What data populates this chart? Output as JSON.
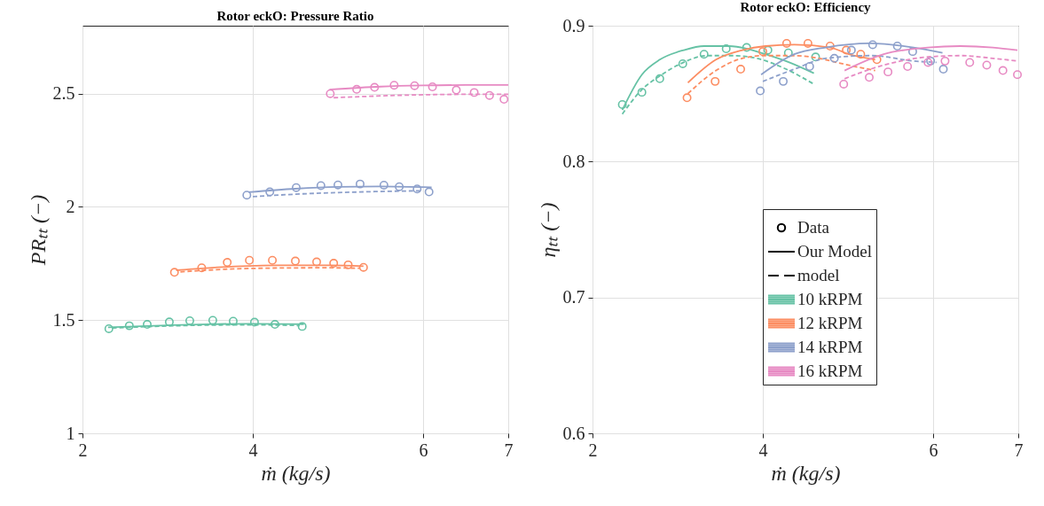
{
  "chart_data": [
    {
      "type": "line",
      "title": "Rotor eckO: Pressure Ratio",
      "xlabel": "ṁ (kg/s)",
      "ylabel": "PRₜₜ (−)",
      "xlim": [
        2,
        7
      ],
      "ylim": [
        1,
        2.8
      ],
      "xticks": [
        2,
        4,
        6,
        7
      ],
      "yticks": [
        1,
        1.5,
        2,
        2.5
      ],
      "grid": true,
      "series": [
        {
          "type": "scatter",
          "marker": "circle",
          "color": "#66c2a5",
          "x": [
            2.31,
            2.55,
            2.76,
            3.02,
            3.26,
            3.53,
            3.77,
            4.02,
            4.26,
            4.58
          ],
          "values": [
            1.462,
            1.475,
            1.481,
            1.492,
            1.497,
            1.499,
            1.495,
            1.491,
            1.481,
            1.472
          ]
        },
        {
          "type": "line",
          "line_style": "solid",
          "color": "#66c2a5",
          "x": [
            2.3,
            3.0,
            3.5,
            4.0,
            4.6
          ],
          "values": [
            1.468,
            1.477,
            1.482,
            1.484,
            1.482
          ]
        },
        {
          "type": "line",
          "line_style": "dashed",
          "color": "#66c2a5",
          "x": [
            2.35,
            3.0,
            3.5,
            4.0,
            4.55
          ],
          "values": [
            1.465,
            1.474,
            1.478,
            1.479,
            1.476
          ]
        },
        {
          "type": "scatter",
          "marker": "circle",
          "color": "#fc8d62",
          "x": [
            3.08,
            3.4,
            3.7,
            3.96,
            4.23,
            4.5,
            4.75,
            4.95,
            5.12,
            5.3
          ],
          "values": [
            1.711,
            1.731,
            1.755,
            1.764,
            1.764,
            1.761,
            1.757,
            1.751,
            1.744,
            1.733
          ]
        },
        {
          "type": "line",
          "line_style": "solid",
          "color": "#fc8d62",
          "x": [
            3.1,
            3.7,
            4.3,
            4.9,
            5.3
          ],
          "values": [
            1.72,
            1.735,
            1.742,
            1.742,
            1.738
          ]
        },
        {
          "type": "line",
          "line_style": "dashed",
          "color": "#fc8d62",
          "x": [
            3.15,
            3.7,
            4.3,
            4.9,
            5.25
          ],
          "values": [
            1.713,
            1.725,
            1.73,
            1.731,
            1.729
          ]
        },
        {
          "type": "scatter",
          "marker": "circle",
          "color": "#8da0cb",
          "x": [
            3.93,
            4.2,
            4.51,
            4.8,
            5.0,
            5.26,
            5.54,
            5.72,
            5.93,
            6.07
          ],
          "values": [
            2.052,
            2.066,
            2.085,
            2.094,
            2.097,
            2.101,
            2.096,
            2.089,
            2.079,
            2.066
          ]
        },
        {
          "type": "line",
          "line_style": "solid",
          "color": "#8da0cb",
          "x": [
            3.95,
            4.5,
            5.0,
            5.5,
            6.1
          ],
          "values": [
            2.065,
            2.08,
            2.088,
            2.09,
            2.086
          ]
        },
        {
          "type": "line",
          "line_style": "dashed",
          "color": "#8da0cb",
          "x": [
            4.0,
            4.5,
            5.0,
            5.5,
            6.0
          ],
          "values": [
            2.045,
            2.056,
            2.063,
            2.068,
            2.071
          ]
        },
        {
          "type": "scatter",
          "marker": "circle",
          "color": "#e78ac3",
          "x": [
            4.91,
            5.22,
            5.43,
            5.66,
            5.9,
            6.11,
            6.39,
            6.6,
            6.78,
            6.95
          ],
          "values": [
            2.5,
            2.519,
            2.528,
            2.537,
            2.535,
            2.53,
            2.516,
            2.505,
            2.492,
            2.475
          ]
        },
        {
          "type": "line",
          "line_style": "solid",
          "color": "#e78ac3",
          "x": [
            4.9,
            5.5,
            6.0,
            6.5,
            7.0
          ],
          "values": [
            2.518,
            2.531,
            2.536,
            2.538,
            2.538
          ]
        },
        {
          "type": "line",
          "line_style": "dashed",
          "color": "#e78ac3",
          "x": [
            4.95,
            5.5,
            6.0,
            6.5,
            7.0
          ],
          "values": [
            2.482,
            2.49,
            2.495,
            2.497,
            2.497
          ]
        }
      ]
    },
    {
      "type": "line",
      "title": "Rotor eckO: Efficiency",
      "xlabel": "ṁ (kg/s)",
      "ylabel": "ηₜₜ (−)",
      "xlim": [
        2,
        7
      ],
      "ylim": [
        0.6,
        0.9
      ],
      "xticks": [
        2,
        4,
        6,
        7
      ],
      "yticks": [
        0.6,
        0.7,
        0.8,
        0.9
      ],
      "grid": true,
      "legend": "center",
      "series": [
        {
          "name": "Data",
          "type": "scatter",
          "marker": "circle",
          "color": "#000000"
        },
        {
          "name": "Our Model",
          "type": "line",
          "line_style": "solid",
          "color": "#000000"
        },
        {
          "name": "model",
          "type": "line",
          "line_style": "dashed",
          "color": "#000000"
        },
        {
          "type": "scatter",
          "marker": "circle",
          "color": "#66c2a5",
          "x": [
            2.35,
            2.58,
            2.79,
            3.06,
            3.31,
            3.57,
            3.81,
            4.06,
            4.3,
            4.62
          ],
          "values": [
            0.842,
            0.851,
            0.861,
            0.872,
            0.879,
            0.883,
            0.884,
            0.882,
            0.88,
            0.877
          ]
        },
        {
          "name": "10 kRPM",
          "type": "line",
          "line_style": "solid",
          "color": "#66c2a5",
          "x": [
            2.35,
            2.58,
            2.79,
            3.07,
            3.31,
            3.6,
            3.82,
            4.03,
            4.31,
            4.6
          ],
          "values": [
            0.838,
            0.864,
            0.875,
            0.882,
            0.885,
            0.885,
            0.883,
            0.879,
            0.873,
            0.865
          ]
        },
        {
          "type": "line",
          "line_style": "dashed",
          "color": "#66c2a5",
          "x": [
            2.35,
            2.58,
            2.79,
            3.07,
            3.34,
            3.65,
            3.93,
            4.24,
            4.6
          ],
          "values": [
            0.835,
            0.853,
            0.863,
            0.873,
            0.878,
            0.878,
            0.876,
            0.869,
            0.857
          ]
        },
        {
          "type": "scatter",
          "marker": "circle",
          "color": "#fc8d62",
          "x": [
            3.11,
            3.44,
            3.74,
            4.0,
            4.28,
            4.53,
            4.79,
            4.98,
            5.15,
            5.34
          ],
          "values": [
            0.847,
            0.859,
            0.868,
            0.881,
            0.887,
            0.887,
            0.885,
            0.882,
            0.879,
            0.875
          ]
        },
        {
          "name": "12 kRPM",
          "type": "line",
          "line_style": "solid",
          "color": "#fc8d62",
          "x": [
            3.12,
            3.45,
            3.76,
            4.03,
            4.37,
            4.79,
            5.01,
            5.32
          ],
          "values": [
            0.858,
            0.875,
            0.882,
            0.885,
            0.886,
            0.884,
            0.879,
            0.875
          ]
        },
        {
          "type": "line",
          "line_style": "dashed",
          "color": "#fc8d62",
          "x": [
            3.12,
            3.45,
            3.76,
            4.03,
            4.37,
            5.08,
            5.32
          ],
          "values": [
            0.85,
            0.867,
            0.876,
            0.878,
            0.878,
            0.87,
            0.867
          ]
        },
        {
          "type": "scatter",
          "marker": "circle",
          "color": "#8da0cb",
          "x": [
            3.97,
            4.24,
            4.55,
            4.84,
            5.04,
            5.29,
            5.58,
            5.76,
            5.97,
            6.12
          ],
          "values": [
            0.852,
            0.859,
            0.87,
            0.876,
            0.882,
            0.886,
            0.885,
            0.881,
            0.874,
            0.868
          ]
        },
        {
          "name": "14 kRPM",
          "type": "line",
          "line_style": "solid",
          "color": "#8da0cb",
          "x": [
            3.98,
            4.37,
            4.74,
            5.25,
            5.77,
            6.11
          ],
          "values": [
            0.864,
            0.879,
            0.884,
            0.887,
            0.884,
            0.88
          ]
        },
        {
          "type": "line",
          "line_style": "dashed",
          "color": "#8da0cb",
          "x": [
            4.0,
            4.37,
            4.74,
            5.28,
            5.77,
            6.04
          ],
          "values": [
            0.859,
            0.868,
            0.876,
            0.878,
            0.874,
            0.873
          ]
        },
        {
          "type": "scatter",
          "marker": "circle",
          "color": "#e78ac3",
          "x": [
            4.95,
            5.25,
            5.47,
            5.7,
            5.94,
            6.14,
            6.43,
            6.63,
            6.82,
            6.99
          ],
          "values": [
            0.857,
            0.862,
            0.866,
            0.87,
            0.873,
            0.874,
            0.873,
            0.871,
            0.867,
            0.864
          ]
        },
        {
          "name": "16 kRPM",
          "type": "line",
          "line_style": "solid",
          "color": "#e78ac3",
          "x": [
            4.96,
            5.42,
            5.94,
            6.32,
            6.7,
            6.99
          ],
          "values": [
            0.867,
            0.879,
            0.884,
            0.885,
            0.884,
            0.882
          ]
        },
        {
          "type": "line",
          "line_style": "dashed",
          "color": "#e78ac3",
          "x": [
            4.96,
            5.42,
            5.94,
            6.32,
            6.7,
            6.99
          ],
          "values": [
            0.861,
            0.871,
            0.877,
            0.878,
            0.876,
            0.874
          ]
        }
      ]
    }
  ]
}
